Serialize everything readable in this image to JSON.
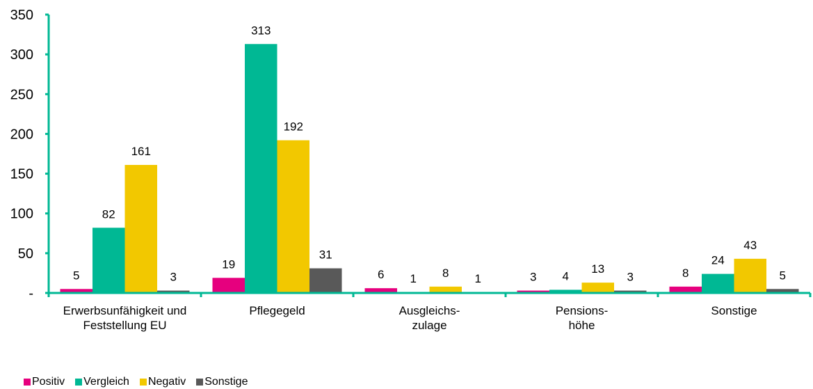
{
  "chart_data": {
    "type": "bar",
    "title": "",
    "xlabel": "",
    "ylabel": "",
    "categories": [
      [
        "Erwerbsunfähigkeit und",
        "Feststellung EU"
      ],
      [
        "Pflegegeld"
      ],
      [
        "Ausgleichs-",
        "zulage"
      ],
      [
        "Pensions-",
        "höhe"
      ],
      [
        "Sonstige"
      ]
    ],
    "series": [
      {
        "name": "Positiv",
        "color": "#e6007e",
        "values": [
          5,
          19,
          6,
          3,
          8
        ]
      },
      {
        "name": "Vergleich",
        "color": "#00b894",
        "values": [
          82,
          313,
          1,
          4,
          24
        ]
      },
      {
        "name": "Negativ",
        "color": "#f2c800",
        "values": [
          161,
          192,
          8,
          13,
          43
        ]
      },
      {
        "name": "Sonstige",
        "color": "#595959",
        "values": [
          3,
          31,
          1,
          3,
          5
        ]
      }
    ],
    "ylim": [
      0,
      350
    ],
    "yticks": [
      {
        "value": 0,
        "label": "-"
      },
      {
        "value": 50,
        "label": "50"
      },
      {
        "value": 100,
        "label": "100"
      },
      {
        "value": 150,
        "label": "150"
      },
      {
        "value": 200,
        "label": "200"
      },
      {
        "value": 250,
        "label": "250"
      },
      {
        "value": 300,
        "label": "300"
      },
      {
        "value": 350,
        "label": "350"
      }
    ],
    "axis_color": "#00b894",
    "grid": false,
    "legend_position": "bottom-left"
  }
}
